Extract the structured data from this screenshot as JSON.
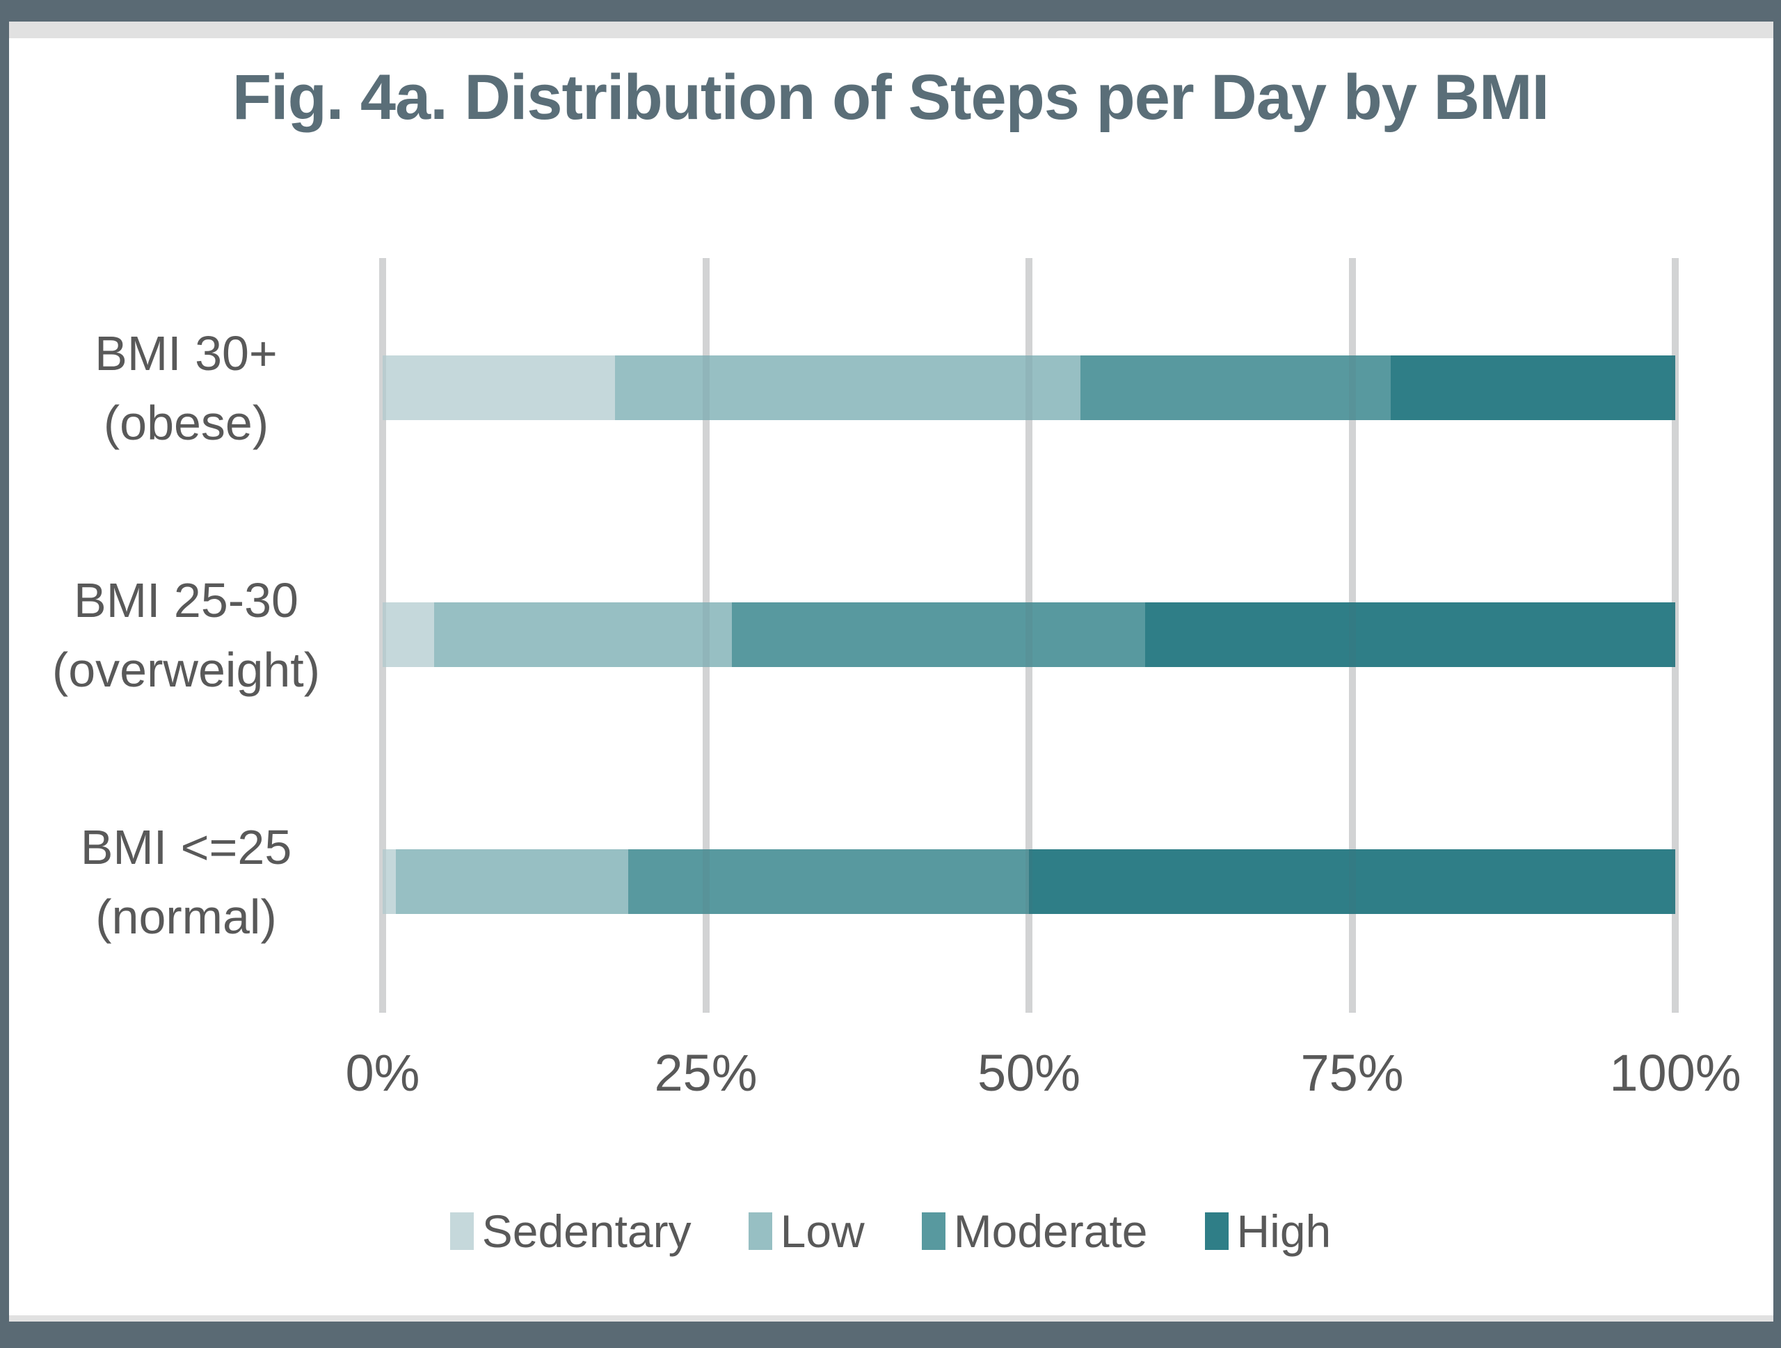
{
  "title": {
    "text": "Fig. 4a. Distribution of Steps per Day by BMI",
    "color": "#5a6e78"
  },
  "frame": {
    "border_color": "#5a6a74",
    "inner_strip_color": "#e1e1e1"
  },
  "chart_data": {
    "type": "bar",
    "orientation": "horizontal",
    "stacked": true,
    "units": "percent",
    "title": "Fig. 4a. Distribution of Steps per Day by BMI",
    "categories": [
      "BMI 30+ (obese)",
      "BMI 25-30 (overweight)",
      "BMI <=25 (normal)"
    ],
    "category_label_lines": [
      [
        "BMI 30+",
        "(obese)"
      ],
      [
        "BMI 25-30",
        "(overweight)"
      ],
      [
        "BMI <=25",
        "(normal)"
      ]
    ],
    "series": [
      {
        "name": "Sedentary",
        "color": "#c5d8db",
        "values": [
          18,
          4,
          1
        ]
      },
      {
        "name": "Low",
        "color": "#97bfc3",
        "values": [
          36,
          23,
          18
        ]
      },
      {
        "name": "Moderate",
        "color": "#58999f",
        "values": [
          24,
          32,
          31
        ]
      },
      {
        "name": "High",
        "color": "#2f7e87",
        "values": [
          22,
          41,
          50
        ]
      }
    ],
    "xlim": [
      0,
      100
    ],
    "x_ticks": [
      "0%",
      "25%",
      "50%",
      "75%",
      "100%"
    ],
    "x_tick_values": [
      0,
      25,
      50,
      75,
      100
    ],
    "grid": true,
    "gridline_color": "#e0e0e0",
    "text_color": "#595959",
    "legend_position": "bottom"
  },
  "legend": {
    "items": [
      {
        "label": "Sedentary",
        "color": "#c5d8db"
      },
      {
        "label": "Low",
        "color": "#97bfc3"
      },
      {
        "label": "Moderate",
        "color": "#58999f"
      },
      {
        "label": "High",
        "color": "#2f7e87"
      }
    ]
  }
}
